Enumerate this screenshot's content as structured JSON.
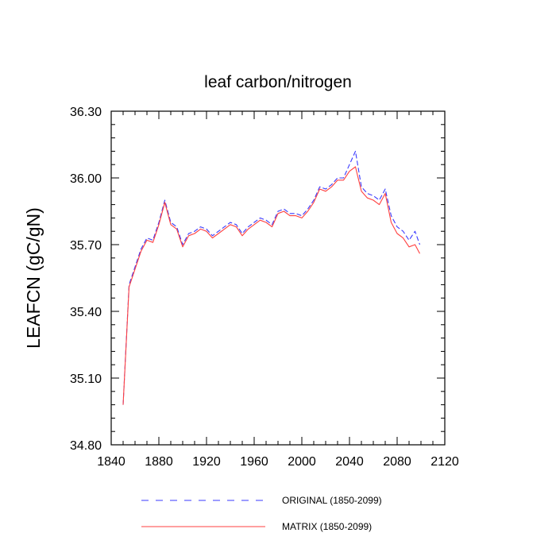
{
  "chart_data": {
    "type": "line",
    "title": "leaf carbon/nitrogen",
    "xlabel": "",
    "ylabel": "LEAFCN  (gC/gN)",
    "xlim": [
      1840,
      2120
    ],
    "ylim": [
      34.8,
      36.3
    ],
    "x_ticks": [
      1840,
      1880,
      1920,
      1960,
      2000,
      2040,
      2080,
      2120
    ],
    "x_tick_labels": [
      "1840",
      "1880",
      "1920",
      "1960",
      "2000",
      "2040",
      "2080",
      "2120"
    ],
    "y_ticks": [
      34.8,
      35.1,
      35.4,
      35.7,
      36.0,
      36.3
    ],
    "y_tick_labels": [
      "34.80",
      "35.10",
      "35.40",
      "35.70",
      "36.00",
      "36.30"
    ],
    "x": [
      1850,
      1855,
      1860,
      1865,
      1870,
      1875,
      1880,
      1885,
      1890,
      1895,
      1900,
      1905,
      1910,
      1915,
      1920,
      1925,
      1930,
      1935,
      1940,
      1945,
      1950,
      1955,
      1960,
      1965,
      1970,
      1975,
      1980,
      1985,
      1990,
      1995,
      2000,
      2005,
      2010,
      2015,
      2020,
      2025,
      2030,
      2035,
      2040,
      2045,
      2050,
      2055,
      2060,
      2065,
      2070,
      2075,
      2080,
      2085,
      2090,
      2095,
      2099
    ],
    "series": [
      {
        "name": "ORIGINAL (1850-2099)",
        "color": "#3a3aff",
        "dash": "dashed",
        "values": [
          34.98,
          35.52,
          35.6,
          35.68,
          35.73,
          35.72,
          35.8,
          35.9,
          35.8,
          35.78,
          35.7,
          35.75,
          35.76,
          35.78,
          35.77,
          35.74,
          35.76,
          35.78,
          35.8,
          35.79,
          35.75,
          35.78,
          35.8,
          35.82,
          35.81,
          35.79,
          35.85,
          35.86,
          35.84,
          35.84,
          35.83,
          35.86,
          35.9,
          35.96,
          35.95,
          35.97,
          36.0,
          36.0,
          36.06,
          36.12,
          35.96,
          35.93,
          35.92,
          35.9,
          35.95,
          35.83,
          35.78,
          35.76,
          35.72,
          35.76,
          35.7
        ]
      },
      {
        "name": "MATRIX (1850-2099)",
        "color": "#ff4040",
        "dash": "solid",
        "values": [
          34.98,
          35.51,
          35.59,
          35.67,
          35.72,
          35.71,
          35.79,
          35.89,
          35.79,
          35.77,
          35.69,
          35.74,
          35.75,
          35.77,
          35.76,
          35.73,
          35.75,
          35.77,
          35.79,
          35.78,
          35.74,
          35.77,
          35.79,
          35.81,
          35.8,
          35.78,
          35.84,
          35.85,
          35.83,
          35.83,
          35.82,
          35.85,
          35.89,
          35.95,
          35.94,
          35.96,
          35.99,
          35.99,
          36.03,
          36.05,
          35.94,
          35.91,
          35.9,
          35.88,
          35.93,
          35.8,
          35.75,
          35.73,
          35.69,
          35.7,
          35.66
        ]
      }
    ],
    "legend": {
      "position": "bottom",
      "entries": [
        "ORIGINAL (1850-2099)",
        "MATRIX (1850-2099)"
      ]
    }
  }
}
